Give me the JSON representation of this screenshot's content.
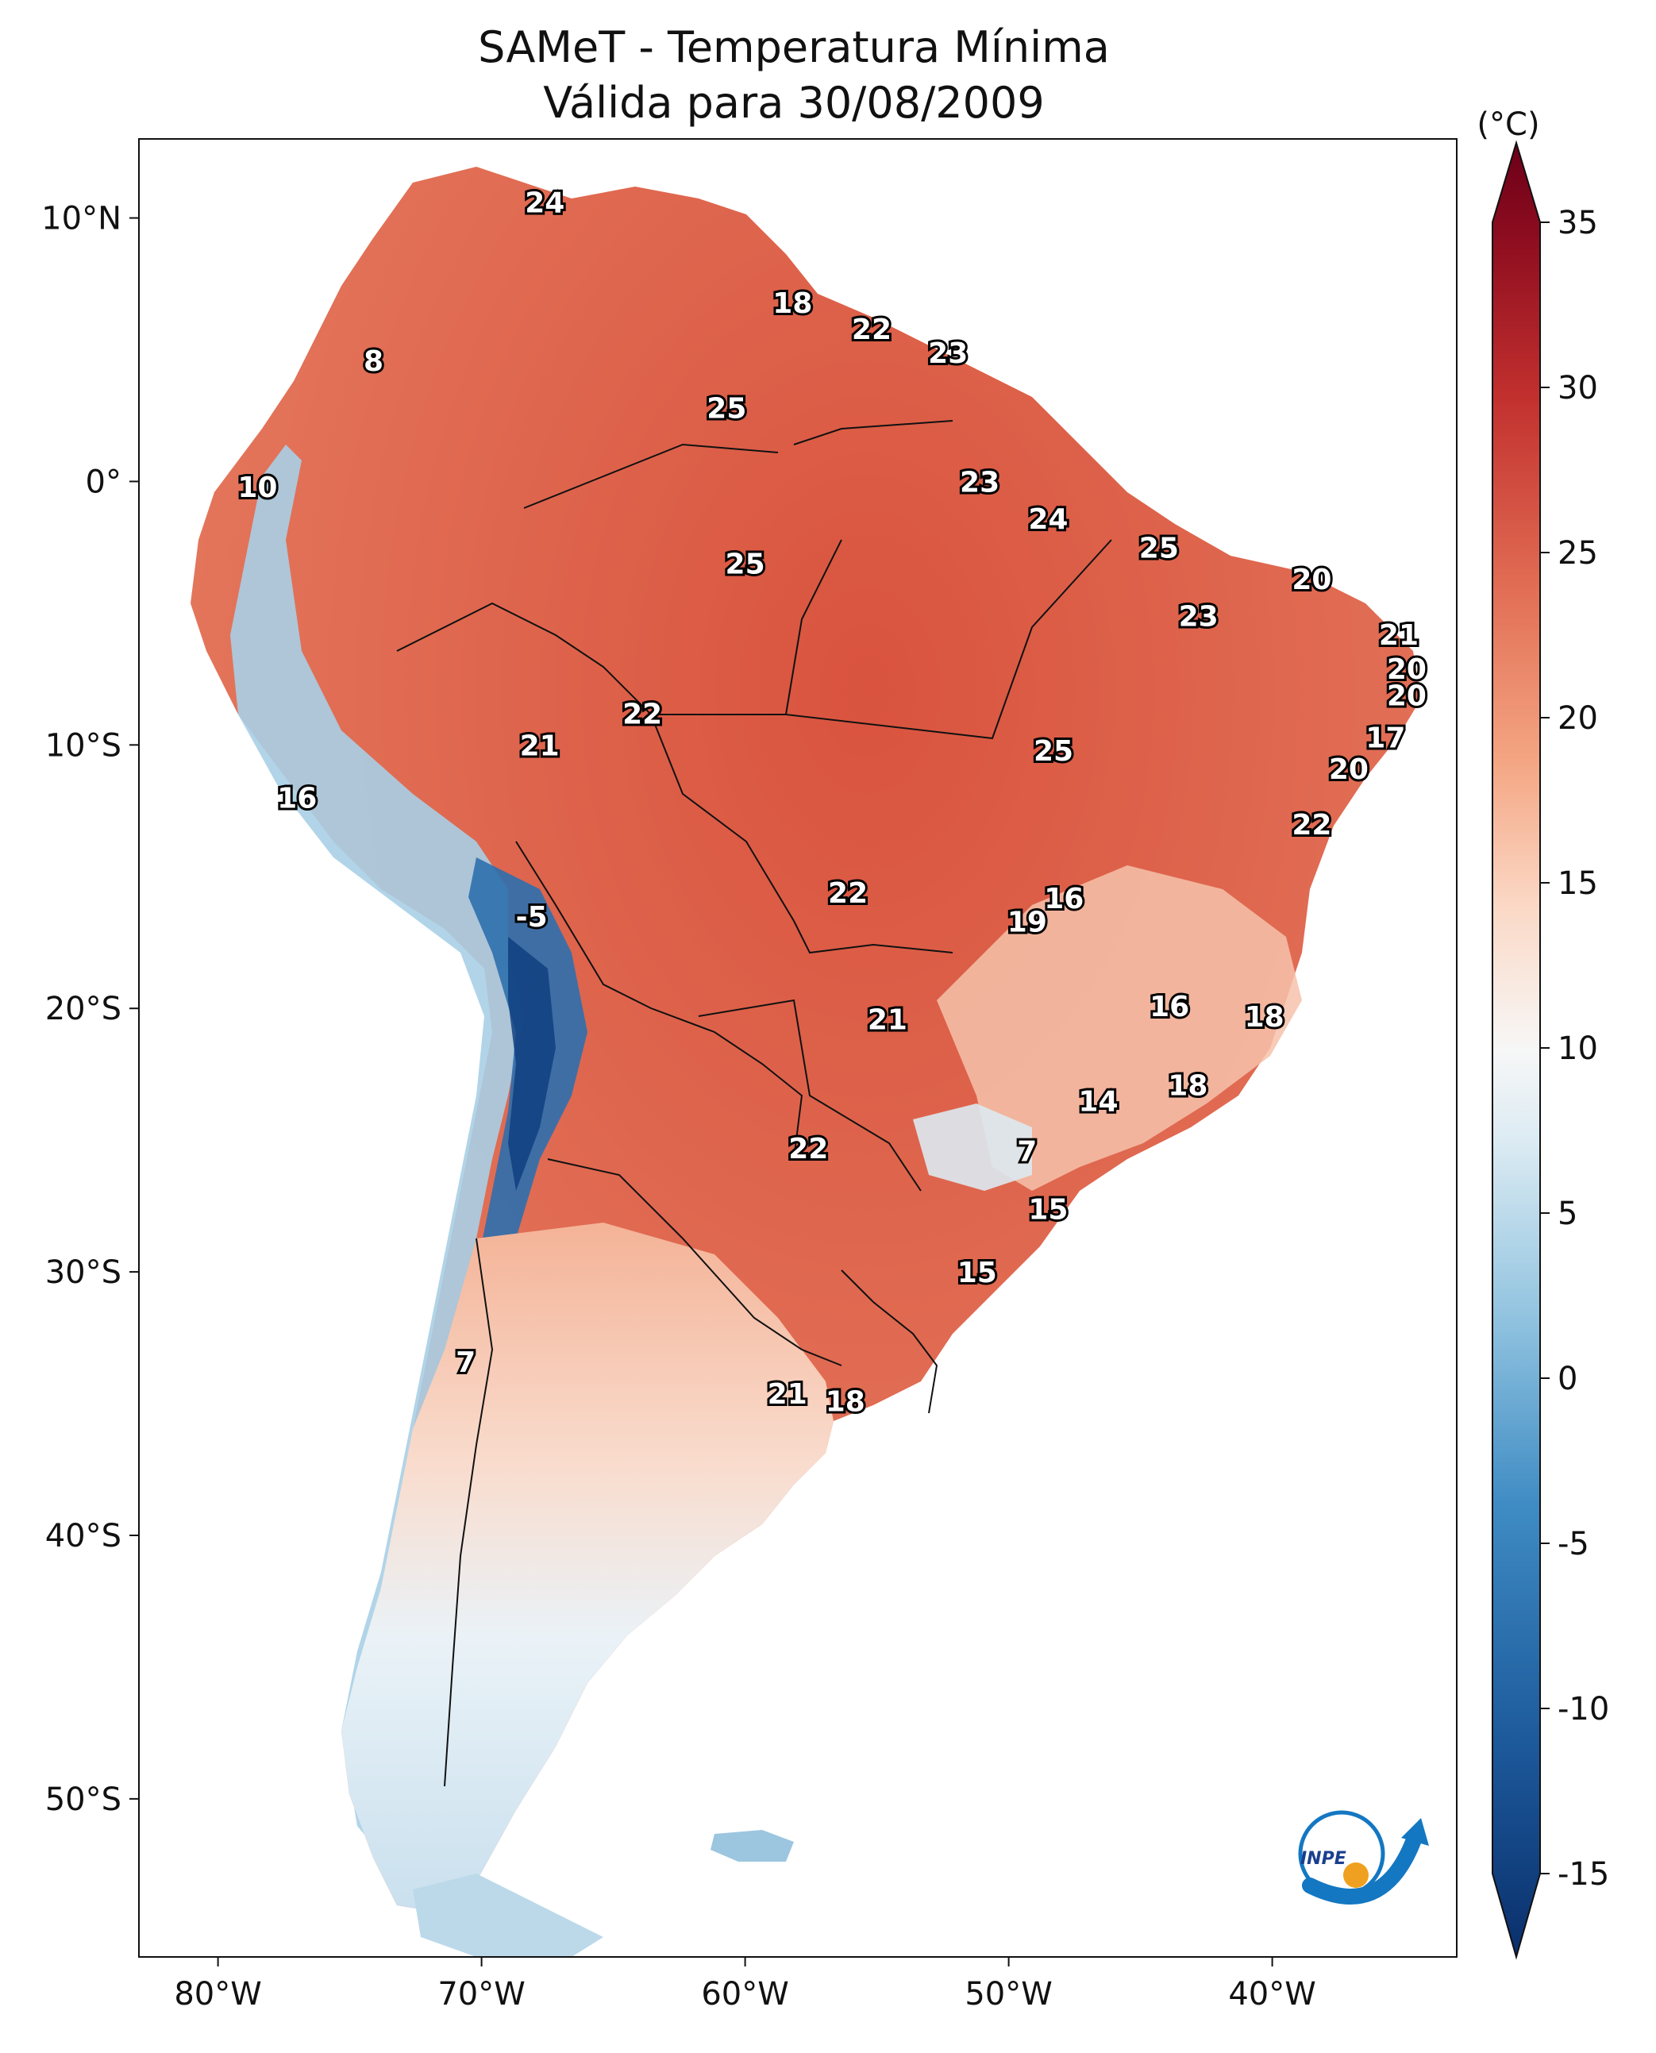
{
  "title": {
    "line1": "SAMeT - Temperatura Mínima",
    "line2": "Válida para 30/08/2009"
  },
  "axes": {
    "lon_ticks": [
      {
        "value": -80,
        "label": "80°W"
      },
      {
        "value": -70,
        "label": "70°W"
      },
      {
        "value": -60,
        "label": "60°W"
      },
      {
        "value": -50,
        "label": "50°W"
      },
      {
        "value": -40,
        "label": "40°W"
      }
    ],
    "lat_ticks": [
      {
        "value": 10,
        "label": "10°N"
      },
      {
        "value": 0,
        "label": "0°"
      },
      {
        "value": -10,
        "label": "10°S"
      },
      {
        "value": -20,
        "label": "20°S"
      },
      {
        "value": -30,
        "label": "30°S"
      },
      {
        "value": -40,
        "label": "40°S"
      },
      {
        "value": -50,
        "label": "50°S"
      }
    ],
    "lon_range": [
      -83,
      -33
    ],
    "lat_range": [
      -56,
      13
    ]
  },
  "colorbar": {
    "unit": "(°C)",
    "range": [
      -15,
      35
    ],
    "ticks": [
      {
        "value": 35,
        "label": "35"
      },
      {
        "value": 30,
        "label": "30"
      },
      {
        "value": 25,
        "label": "25"
      },
      {
        "value": 20,
        "label": "20"
      },
      {
        "value": 15,
        "label": "15"
      },
      {
        "value": 10,
        "label": "10"
      },
      {
        "value": 5,
        "label": "5"
      },
      {
        "value": 0,
        "label": "0"
      },
      {
        "value": -5,
        "label": "-5"
      },
      {
        "value": -10,
        "label": "-10"
      },
      {
        "value": -15,
        "label": "-15"
      }
    ],
    "colors": {
      "min": "#0a2f6b",
      "cold": "#2f79b5",
      "cool": "#a8d0e6",
      "neutral": "#f7f7f7",
      "mild": "#f6b99c",
      "warm": "#e06a52",
      "max": "#6b0018"
    }
  },
  "station_labels": [
    {
      "lon": -67.6,
      "lat": 10.6,
      "text": "24"
    },
    {
      "lon": -74.1,
      "lat": 4.6,
      "text": "8"
    },
    {
      "lon": -78.5,
      "lat": -0.2,
      "text": "10"
    },
    {
      "lon": -58.2,
      "lat": 6.8,
      "text": "18"
    },
    {
      "lon": -55.2,
      "lat": 5.8,
      "text": "22"
    },
    {
      "lon": -52.3,
      "lat": 4.9,
      "text": "23"
    },
    {
      "lon": -60.7,
      "lat": 2.8,
      "text": "25"
    },
    {
      "lon": -51.1,
      "lat": 0.0,
      "text": "23"
    },
    {
      "lon": -48.5,
      "lat": -1.4,
      "text": "24"
    },
    {
      "lon": -44.3,
      "lat": -2.5,
      "text": "25"
    },
    {
      "lon": -60.0,
      "lat": -3.1,
      "text": "25"
    },
    {
      "lon": -38.5,
      "lat": -3.7,
      "text": "20"
    },
    {
      "lon": -42.8,
      "lat": -5.1,
      "text": "23"
    },
    {
      "lon": -35.2,
      "lat": -5.8,
      "text": "21"
    },
    {
      "lon": -34.9,
      "lat": -7.1,
      "text": "20"
    },
    {
      "lon": -34.9,
      "lat": -8.1,
      "text": "20"
    },
    {
      "lon": -63.9,
      "lat": -8.8,
      "text": "22"
    },
    {
      "lon": -67.8,
      "lat": -10.0,
      "text": "21"
    },
    {
      "lon": -48.3,
      "lat": -10.2,
      "text": "25"
    },
    {
      "lon": -35.7,
      "lat": -9.7,
      "text": "17"
    },
    {
      "lon": -37.1,
      "lat": -10.9,
      "text": "20"
    },
    {
      "lon": -77.0,
      "lat": -12.0,
      "text": "16"
    },
    {
      "lon": -38.5,
      "lat": -13.0,
      "text": "22"
    },
    {
      "lon": -68.1,
      "lat": -16.5,
      "text": "-5"
    },
    {
      "lon": -47.9,
      "lat": -15.8,
      "text": "16"
    },
    {
      "lon": -49.3,
      "lat": -16.7,
      "text": "19"
    },
    {
      "lon": -56.1,
      "lat": -15.6,
      "text": "22"
    },
    {
      "lon": -43.9,
      "lat": -19.9,
      "text": "16"
    },
    {
      "lon": -40.3,
      "lat": -20.3,
      "text": "18"
    },
    {
      "lon": -54.6,
      "lat": -20.4,
      "text": "21"
    },
    {
      "lon": -43.2,
      "lat": -22.9,
      "text": "18"
    },
    {
      "lon": -46.6,
      "lat": -23.5,
      "text": "14"
    },
    {
      "lon": -49.3,
      "lat": -25.4,
      "text": "7"
    },
    {
      "lon": -57.6,
      "lat": -25.3,
      "text": "22"
    },
    {
      "lon": -48.5,
      "lat": -27.6,
      "text": "15"
    },
    {
      "lon": -51.2,
      "lat": -30.0,
      "text": "15"
    },
    {
      "lon": -70.6,
      "lat": -33.4,
      "text": "7"
    },
    {
      "lon": -58.4,
      "lat": -34.6,
      "text": "21"
    },
    {
      "lon": -56.2,
      "lat": -34.9,
      "text": "18"
    }
  ],
  "logo": {
    "text": "INPE",
    "colors": {
      "blue": "#1477c2",
      "orange": "#f0a020"
    }
  }
}
